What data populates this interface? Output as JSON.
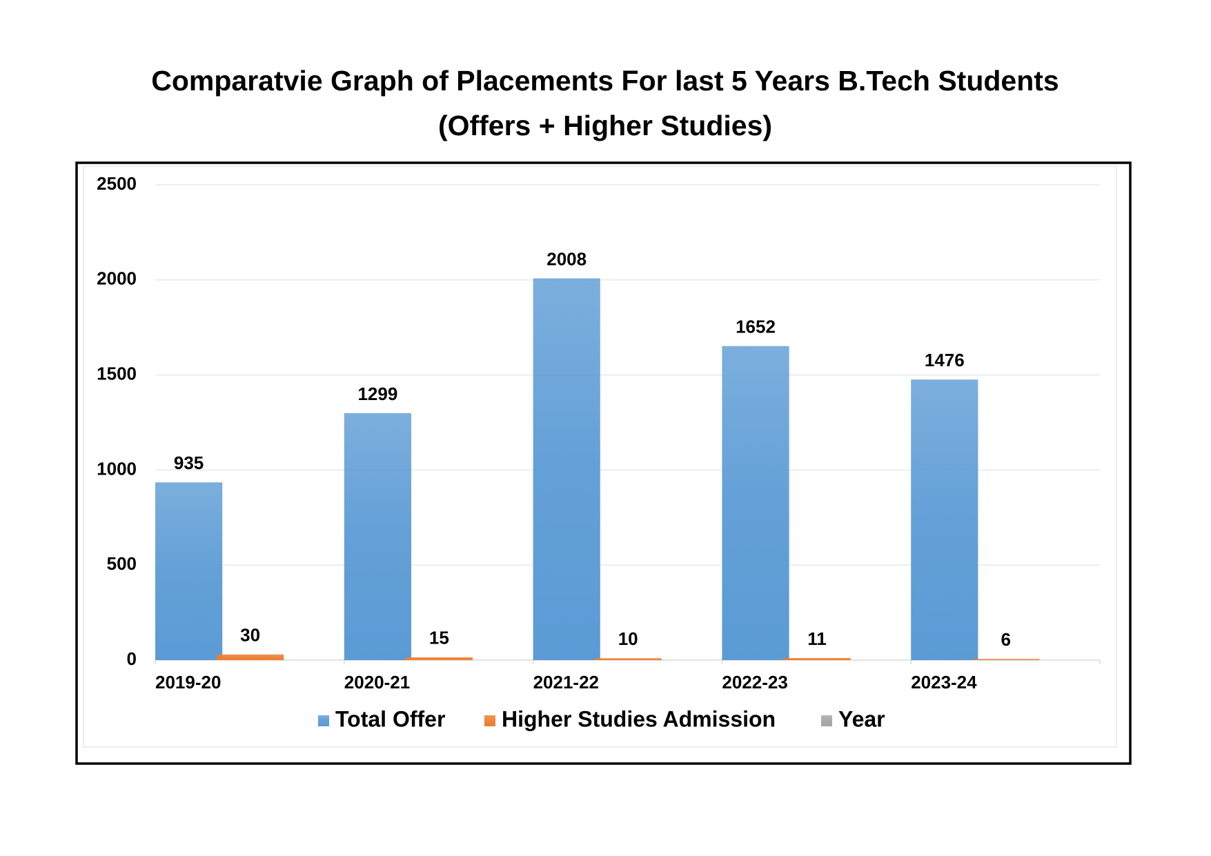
{
  "chart_data": {
    "type": "bar",
    "title": "Comparatvie Graph of Placements For last 5 Years B.Tech Students",
    "subtitle": "(Offers + Higher Studies)",
    "categories": [
      "2019-20",
      "2020-21",
      "2021-22",
      "2022-23",
      "2023-24"
    ],
    "series": [
      {
        "name": "Total Offer",
        "color": "#5b9bd5",
        "values": [
          935,
          1299,
          2008,
          1652,
          1476
        ]
      },
      {
        "name": "Higher Studies Admission",
        "color": "#ed7d31",
        "values": [
          30,
          15,
          10,
          11,
          6
        ]
      },
      {
        "name": "Year",
        "color": "#a5a5a5",
        "values": [
          null,
          null,
          null,
          null,
          null
        ]
      }
    ],
    "ylim": [
      0,
      2500
    ],
    "yticks": [
      0,
      500,
      1000,
      1500,
      2000,
      2500
    ],
    "grid": true,
    "legend": "bottom"
  }
}
